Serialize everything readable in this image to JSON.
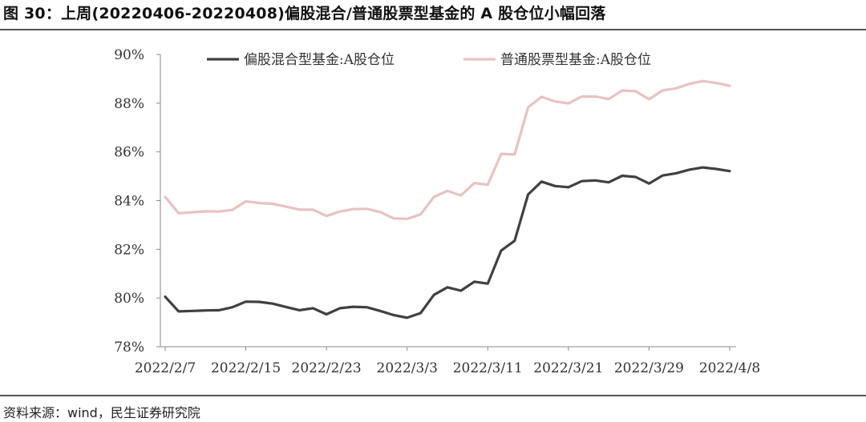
{
  "title": "图 30：上周(20220406-20220408)偏股混合/普通股票型基金的 A 股仓位小幅回落",
  "source": "资料来源：wind，民生证券研究院",
  "chart_data": {
    "type": "line",
    "title": "",
    "xlabel": "",
    "ylabel": "",
    "ylim": [
      78,
      90
    ],
    "y_ticks": [
      "78%",
      "80%",
      "82%",
      "84%",
      "86%",
      "88%",
      "90%"
    ],
    "x_tick_labels": [
      "2022/2/7",
      "2022/2/15",
      "2022/2/23",
      "2022/3/3",
      "2022/3/11",
      "2022/3/21",
      "2022/3/29",
      "2022/4/8"
    ],
    "x": [
      "2022/2/7",
      "2022/2/8",
      "2022/2/9",
      "2022/2/10",
      "2022/2/11",
      "2022/2/14",
      "2022/2/15",
      "2022/2/16",
      "2022/2/17",
      "2022/2/18",
      "2022/2/21",
      "2022/2/22",
      "2022/2/23",
      "2022/2/24",
      "2022/2/25",
      "2022/2/28",
      "2022/3/1",
      "2022/3/2",
      "2022/3/3",
      "2022/3/4",
      "2022/3/7",
      "2022/3/8",
      "2022/3/9",
      "2022/3/10",
      "2022/3/11",
      "2022/3/14",
      "2022/3/15",
      "2022/3/16",
      "2022/3/17",
      "2022/3/18",
      "2022/3/21",
      "2022/3/22",
      "2022/3/23",
      "2022/3/24",
      "2022/3/25",
      "2022/3/28",
      "2022/3/29",
      "2022/3/30",
      "2022/3/31",
      "2022/4/1",
      "2022/4/6",
      "2022/4/7",
      "2022/4/8"
    ],
    "legend_position": "top",
    "grid": false,
    "series": [
      {
        "name": "偏股混合型基金:A股仓位",
        "color": "#404040",
        "values": [
          80.05,
          79.45,
          79.47,
          79.49,
          79.5,
          79.62,
          79.85,
          79.84,
          79.77,
          79.63,
          79.5,
          79.58,
          79.33,
          79.58,
          79.64,
          79.62,
          79.47,
          79.3,
          79.19,
          79.38,
          80.13,
          80.44,
          80.3,
          80.67,
          80.59,
          81.95,
          82.35,
          84.25,
          84.78,
          84.6,
          84.55,
          84.8,
          84.83,
          84.75,
          85.02,
          84.97,
          84.7,
          85.03,
          85.12,
          85.27,
          85.36,
          85.3,
          85.21
        ]
      },
      {
        "name": "普通股票型基金:A股仓位",
        "color": "#e8c2c2",
        "values": [
          84.15,
          83.48,
          83.52,
          83.56,
          83.55,
          83.62,
          83.97,
          83.9,
          83.87,
          83.75,
          83.63,
          83.63,
          83.37,
          83.55,
          83.65,
          83.66,
          83.53,
          83.27,
          83.25,
          83.43,
          84.15,
          84.4,
          84.21,
          84.72,
          84.65,
          85.92,
          85.89,
          87.83,
          88.26,
          88.07,
          87.99,
          88.27,
          88.27,
          88.17,
          88.52,
          88.49,
          88.16,
          88.52,
          88.61,
          88.79,
          88.91,
          88.83,
          88.71
        ]
      }
    ]
  }
}
